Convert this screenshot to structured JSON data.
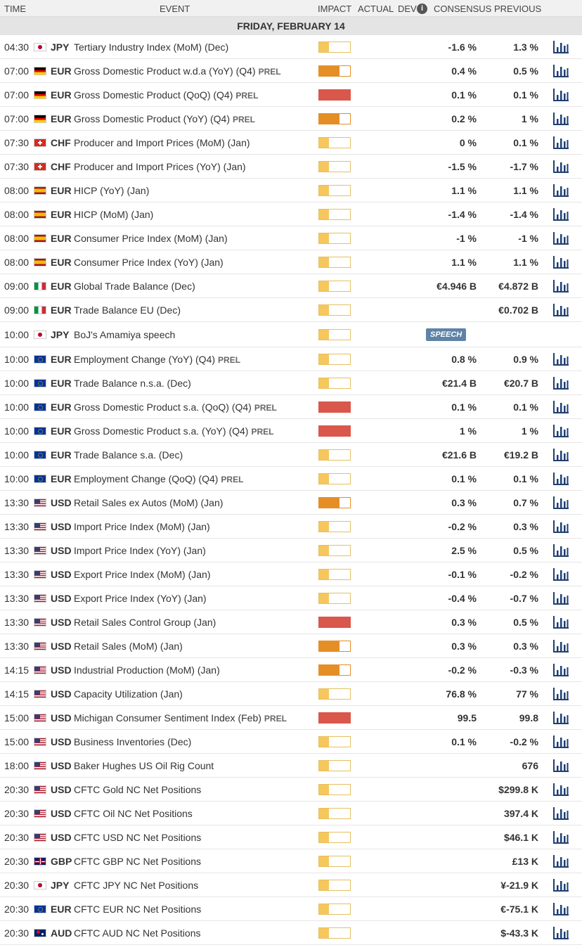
{
  "header": {
    "time": "TIME",
    "event": "EVENT",
    "impact": "IMPACT",
    "actual": "ACTUAL",
    "dev": "DEV",
    "info_icon": "info-icon",
    "consensus": "CONSENSUS",
    "previous": "PREVIOUS"
  },
  "date": "FRIDAY, FEBRUARY 14",
  "colors": {
    "low": "#f6c75d",
    "medium": "#e58e26",
    "high": "#d9574b",
    "speech": "#5f82a8",
    "chart_icon": "#1f3f73"
  },
  "rows": [
    {
      "time": "04:30",
      "flag": "jp",
      "currency": "JPY",
      "event": "Tertiary Industry Index (MoM) (Dec)",
      "prel": "",
      "impact": "low",
      "consensus": "-1.6 %",
      "previous": "1.3 %",
      "chart": true
    },
    {
      "time": "07:00",
      "flag": "de",
      "currency": "EUR",
      "event": "Gross Domestic Product w.d.a (YoY) (Q4)",
      "prel": "PREL",
      "impact": "medium",
      "consensus": "0.4 %",
      "previous": "0.5 %",
      "chart": true
    },
    {
      "time": "07:00",
      "flag": "de",
      "currency": "EUR",
      "event": "Gross Domestic Product (QoQ) (Q4)",
      "prel": "PREL",
      "impact": "high",
      "consensus": "0.1 %",
      "previous": "0.1 %",
      "chart": true
    },
    {
      "time": "07:00",
      "flag": "de",
      "currency": "EUR",
      "event": "Gross Domestic Product (YoY) (Q4)",
      "prel": "PREL",
      "impact": "medium",
      "consensus": "0.2 %",
      "previous": "1 %",
      "chart": true
    },
    {
      "time": "07:30",
      "flag": "ch",
      "currency": "CHF",
      "event": "Producer and Import Prices (MoM) (Jan)",
      "prel": "",
      "impact": "low",
      "consensus": "0 %",
      "previous": "0.1 %",
      "chart": true
    },
    {
      "time": "07:30",
      "flag": "ch",
      "currency": "CHF",
      "event": "Producer and Import Prices (YoY) (Jan)",
      "prel": "",
      "impact": "low",
      "consensus": "-1.5 %",
      "previous": "-1.7 %",
      "chart": true
    },
    {
      "time": "08:00",
      "flag": "es",
      "currency": "EUR",
      "event": "HICP (YoY) (Jan)",
      "prel": "",
      "impact": "low",
      "consensus": "1.1 %",
      "previous": "1.1 %",
      "chart": true
    },
    {
      "time": "08:00",
      "flag": "es",
      "currency": "EUR",
      "event": "HICP (MoM) (Jan)",
      "prel": "",
      "impact": "low",
      "consensus": "-1.4 %",
      "previous": "-1.4 %",
      "chart": true
    },
    {
      "time": "08:00",
      "flag": "es",
      "currency": "EUR",
      "event": "Consumer Price Index (MoM) (Jan)",
      "prel": "",
      "impact": "low",
      "consensus": "-1 %",
      "previous": "-1 %",
      "chart": true
    },
    {
      "time": "08:00",
      "flag": "es",
      "currency": "EUR",
      "event": "Consumer Price Index (YoY) (Jan)",
      "prel": "",
      "impact": "low",
      "consensus": "1.1 %",
      "previous": "1.1 %",
      "chart": true
    },
    {
      "time": "09:00",
      "flag": "it",
      "currency": "EUR",
      "event": "Global Trade Balance (Dec)",
      "prel": "",
      "impact": "low",
      "consensus": "€4.946 B",
      "previous": "€4.872 B",
      "chart": true
    },
    {
      "time": "09:00",
      "flag": "it",
      "currency": "EUR",
      "event": "Trade Balance EU (Dec)",
      "prel": "",
      "impact": "low",
      "consensus": "",
      "previous": "€0.702 B",
      "chart": true
    },
    {
      "time": "10:00",
      "flag": "jp",
      "currency": "JPY",
      "event": "BoJ's Amamiya speech",
      "prel": "",
      "impact": "low",
      "consensus": "",
      "previous": "",
      "chart": false,
      "speech": "SPEECH"
    },
    {
      "time": "10:00",
      "flag": "eu",
      "currency": "EUR",
      "event": "Employment Change (YoY) (Q4)",
      "prel": "PREL",
      "impact": "low",
      "consensus": "0.8 %",
      "previous": "0.9 %",
      "chart": true
    },
    {
      "time": "10:00",
      "flag": "eu",
      "currency": "EUR",
      "event": "Trade Balance n.s.a. (Dec)",
      "prel": "",
      "impact": "low",
      "consensus": "€21.4 B",
      "previous": "€20.7 B",
      "chart": true
    },
    {
      "time": "10:00",
      "flag": "eu",
      "currency": "EUR",
      "event": "Gross Domestic Product s.a. (QoQ) (Q4)",
      "prel": "PREL",
      "impact": "high",
      "consensus": "0.1 %",
      "previous": "0.1 %",
      "chart": true
    },
    {
      "time": "10:00",
      "flag": "eu",
      "currency": "EUR",
      "event": "Gross Domestic Product s.a. (YoY) (Q4)",
      "prel": "PREL",
      "impact": "high",
      "consensus": "1 %",
      "previous": "1 %",
      "chart": true
    },
    {
      "time": "10:00",
      "flag": "eu",
      "currency": "EUR",
      "event": "Trade Balance s.a. (Dec)",
      "prel": "",
      "impact": "low",
      "consensus": "€21.6 B",
      "previous": "€19.2 B",
      "chart": true
    },
    {
      "time": "10:00",
      "flag": "eu",
      "currency": "EUR",
      "event": "Employment Change (QoQ) (Q4)",
      "prel": "PREL",
      "impact": "low",
      "consensus": "0.1 %",
      "previous": "0.1 %",
      "chart": true
    },
    {
      "time": "13:30",
      "flag": "us",
      "currency": "USD",
      "event": "Retail Sales ex Autos (MoM) (Jan)",
      "prel": "",
      "impact": "medium",
      "consensus": "0.3 %",
      "previous": "0.7 %",
      "chart": true
    },
    {
      "time": "13:30",
      "flag": "us",
      "currency": "USD",
      "event": "Import Price Index (MoM) (Jan)",
      "prel": "",
      "impact": "low",
      "consensus": "-0.2 %",
      "previous": "0.3 %",
      "chart": true
    },
    {
      "time": "13:30",
      "flag": "us",
      "currency": "USD",
      "event": "Import Price Index (YoY) (Jan)",
      "prel": "",
      "impact": "low",
      "consensus": "2.5 %",
      "previous": "0.5 %",
      "chart": true
    },
    {
      "time": "13:30",
      "flag": "us",
      "currency": "USD",
      "event": "Export Price Index (MoM) (Jan)",
      "prel": "",
      "impact": "low",
      "consensus": "-0.1 %",
      "previous": "-0.2 %",
      "chart": true
    },
    {
      "time": "13:30",
      "flag": "us",
      "currency": "USD",
      "event": "Export Price Index (YoY) (Jan)",
      "prel": "",
      "impact": "low",
      "consensus": "-0.4 %",
      "previous": "-0.7 %",
      "chart": true
    },
    {
      "time": "13:30",
      "flag": "us",
      "currency": "USD",
      "event": "Retail Sales Control Group (Jan)",
      "prel": "",
      "impact": "high",
      "consensus": "0.3 %",
      "previous": "0.5 %",
      "chart": true
    },
    {
      "time": "13:30",
      "flag": "us",
      "currency": "USD",
      "event": "Retail Sales (MoM) (Jan)",
      "prel": "",
      "impact": "medium",
      "consensus": "0.3 %",
      "previous": "0.3 %",
      "chart": true
    },
    {
      "time": "14:15",
      "flag": "us",
      "currency": "USD",
      "event": "Industrial Production (MoM) (Jan)",
      "prel": "",
      "impact": "medium",
      "consensus": "-0.2 %",
      "previous": "-0.3 %",
      "chart": true
    },
    {
      "time": "14:15",
      "flag": "us",
      "currency": "USD",
      "event": "Capacity Utilization (Jan)",
      "prel": "",
      "impact": "low",
      "consensus": "76.8 %",
      "previous": "77 %",
      "chart": true
    },
    {
      "time": "15:00",
      "flag": "us",
      "currency": "USD",
      "event": "Michigan Consumer Sentiment Index (Feb)",
      "prel": "PREL",
      "impact": "high",
      "consensus": "99.5",
      "previous": "99.8",
      "chart": true
    },
    {
      "time": "15:00",
      "flag": "us",
      "currency": "USD",
      "event": "Business Inventories (Dec)",
      "prel": "",
      "impact": "low",
      "consensus": "0.1 %",
      "previous": "-0.2 %",
      "chart": true
    },
    {
      "time": "18:00",
      "flag": "us",
      "currency": "USD",
      "event": "Baker Hughes US Oil Rig Count",
      "prel": "",
      "impact": "low",
      "consensus": "",
      "previous": "676",
      "chart": true
    },
    {
      "time": "20:30",
      "flag": "us",
      "currency": "USD",
      "event": "CFTC Gold NC Net Positions",
      "prel": "",
      "impact": "low",
      "consensus": "",
      "previous": "$299.8 K",
      "chart": true
    },
    {
      "time": "20:30",
      "flag": "us",
      "currency": "USD",
      "event": "CFTC Oil NC Net Positions",
      "prel": "",
      "impact": "low",
      "consensus": "",
      "previous": "397.4 K",
      "chart": true
    },
    {
      "time": "20:30",
      "flag": "us",
      "currency": "USD",
      "event": "CFTC USD NC Net Positions",
      "prel": "",
      "impact": "low",
      "consensus": "",
      "previous": "$46.1 K",
      "chart": true
    },
    {
      "time": "20:30",
      "flag": "gb",
      "currency": "GBP",
      "event": "CFTC GBP NC Net Positions",
      "prel": "",
      "impact": "low",
      "consensus": "",
      "previous": "£13 K",
      "chart": true
    },
    {
      "time": "20:30",
      "flag": "jp",
      "currency": "JPY",
      "event": "CFTC JPY NC Net Positions",
      "prel": "",
      "impact": "low",
      "consensus": "",
      "previous": "¥-21.9 K",
      "chart": true
    },
    {
      "time": "20:30",
      "flag": "eu",
      "currency": "EUR",
      "event": "CFTC EUR NC Net Positions",
      "prel": "",
      "impact": "low",
      "consensus": "",
      "previous": "€-75.1 K",
      "chart": true
    },
    {
      "time": "20:30",
      "flag": "au",
      "currency": "AUD",
      "event": "CFTC AUD NC Net Positions",
      "prel": "",
      "impact": "low",
      "consensus": "",
      "previous": "$-43.3 K",
      "chart": true
    }
  ]
}
